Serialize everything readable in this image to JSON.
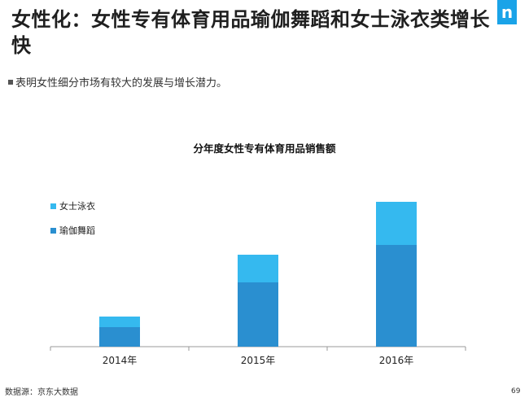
{
  "page": {
    "title": "女性化：女性专有体育用品瑜伽舞蹈和女士泳衣类增长快",
    "subtitle": "表明女性细分市场有较大的发展与增长潜力。",
    "logo_letter": "n",
    "source": "数据源：京东大数据",
    "page_number": "69"
  },
  "colors": {
    "brand": "#1aa3e8",
    "yoga_dance": "#2a8fd0",
    "swimwear": "#35b9ef",
    "axis": "#999999"
  },
  "chart_data": {
    "type": "bar",
    "stacked": true,
    "title": "分年度女性专有体育用品销售额",
    "categories": [
      "2014年",
      "2015年",
      "2016年"
    ],
    "series": [
      {
        "name": "瑜伽舞蹈",
        "values": [
          24,
          79,
          125
        ]
      },
      {
        "name": "女士泳衣",
        "values": [
          13,
          34,
          53
        ]
      }
    ],
    "ylim": [
      0,
      190
    ],
    "grid": false,
    "legend_position": "top-left",
    "xlabel": "",
    "ylabel": ""
  }
}
